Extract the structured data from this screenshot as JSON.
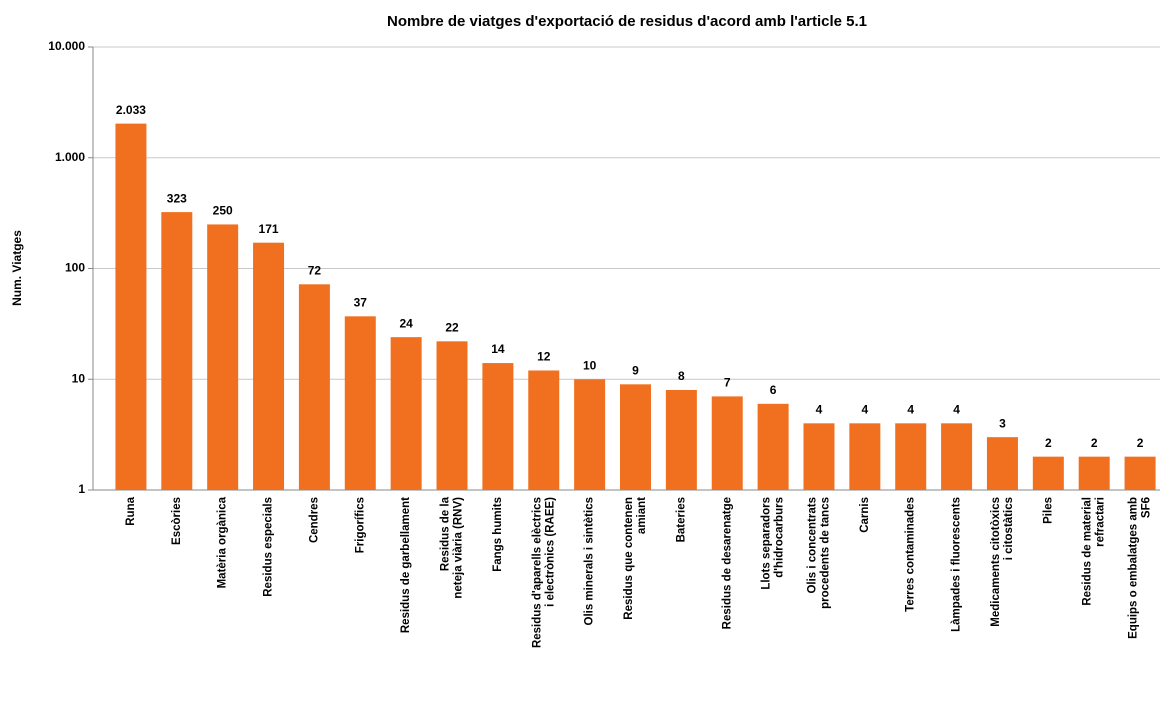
{
  "chart_data": {
    "type": "bar",
    "title": "Nombre de viatges d'exportació de residus d'acord amb l'article 5.1",
    "y_label": "Num. Viatges",
    "categories": [
      [
        "Runa"
      ],
      [
        "Escòries"
      ],
      [
        "Matèria orgànica"
      ],
      [
        "Residus especials"
      ],
      [
        "Cendres"
      ],
      [
        "Frigorífics"
      ],
      [
        "Residus de garbellament"
      ],
      [
        "Residus de la",
        "neteja viària (RNV)"
      ],
      [
        "Fangs humits"
      ],
      [
        "Residus d'aparells elèctrics",
        "i electrònics (RAEE)"
      ],
      [
        "Olis minerals i sintètics"
      ],
      [
        "Residus que contenen",
        "amiant"
      ],
      [
        "Bateries"
      ],
      [
        "Residus de desarenatge"
      ],
      [
        "Llots separadors",
        "d'hidrocarburs"
      ],
      [
        "Olis i concentrats",
        "procedents de tancs"
      ],
      [
        "Carnis"
      ],
      [
        "Terres contaminades"
      ],
      [
        "Làmpades i fluorescents"
      ],
      [
        "Medicaments citotòxics",
        "i citostàtics"
      ],
      [
        "Piles"
      ],
      [
        "Residus de material",
        "refractari"
      ],
      [
        "Equips o embalatges amb",
        "SF6"
      ]
    ],
    "values": [
      2033,
      323,
      250,
      171,
      72,
      37,
      24,
      22,
      14,
      12,
      10,
      9,
      8,
      7,
      6,
      4,
      4,
      4,
      4,
      3,
      2,
      2,
      2
    ],
    "value_labels": [
      "2.033",
      "323",
      "250",
      "171",
      "72",
      "37",
      "24",
      "22",
      "14",
      "12",
      "10",
      "9",
      "8",
      "7",
      "6",
      "4",
      "4",
      "4",
      "4",
      "3",
      "2",
      "2",
      "2"
    ],
    "color": "#f07020",
    "log_scale": true,
    "grid": true,
    "ylim": [
      1,
      10000
    ],
    "yticks": [
      1,
      10,
      100,
      {
        "value": 1000,
        "label": "1.000"
      },
      {
        "value": 10000,
        "label": "10.000"
      }
    ]
  }
}
